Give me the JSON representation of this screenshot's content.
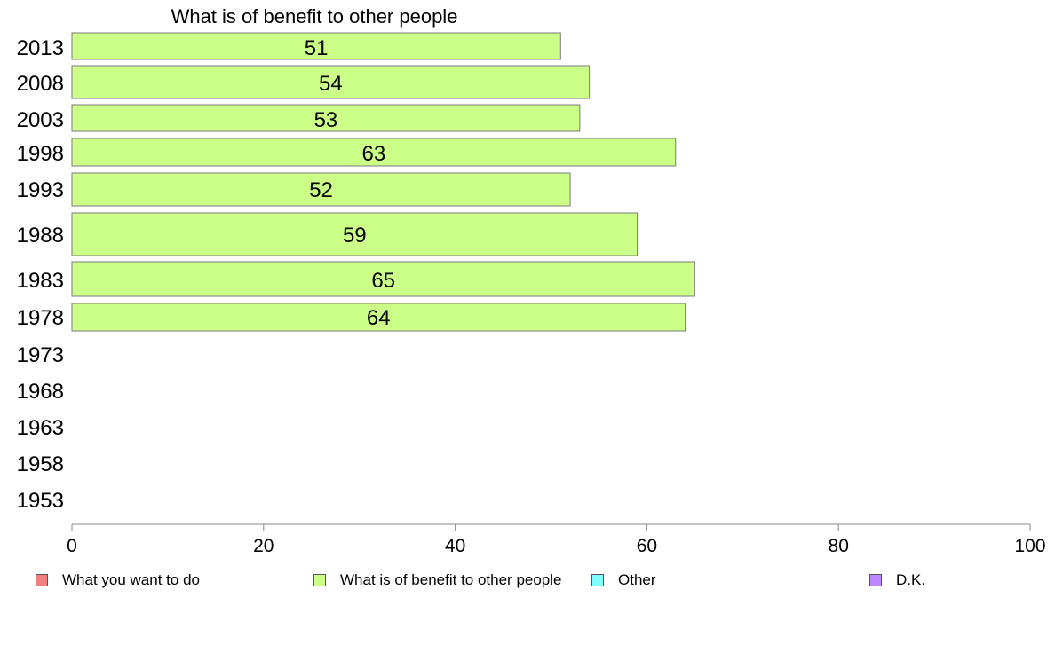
{
  "chart_data": {
    "type": "bar",
    "orientation": "horizontal",
    "title": "What is of benefit to other people",
    "xlabel": "",
    "ylabel": "",
    "xlim": [
      0,
      100
    ],
    "x_ticks": [
      "0",
      "20",
      "40",
      "60",
      "80",
      "100"
    ],
    "categories": [
      "2013",
      "2008",
      "2003",
      "1998",
      "1993",
      "1988",
      "1983",
      "1978",
      "1973",
      "1968",
      "1963",
      "1958",
      "1953"
    ],
    "series": [
      {
        "name": "What is of benefit to other people",
        "color": "#ccff88",
        "values": [
          51,
          54,
          53,
          63,
          52,
          59,
          65,
          64,
          null,
          null,
          null,
          null,
          null
        ],
        "labels": [
          "51",
          "54",
          "53",
          "63",
          "52",
          "59",
          "65",
          "64",
          "",
          "",
          "",
          "",
          ""
        ]
      }
    ],
    "legend": {
      "position": "bottom",
      "items": [
        {
          "label": "What you want to do",
          "color": "#f08080"
        },
        {
          "label": "What is of benefit to other people",
          "color": "#ccff88"
        },
        {
          "label": "Other",
          "color": "#80ffff"
        },
        {
          "label": "D.K.",
          "color": "#bb88ff"
        }
      ]
    },
    "grid": false
  }
}
